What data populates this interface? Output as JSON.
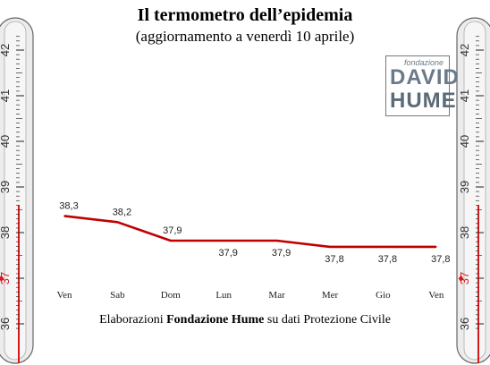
{
  "title": "Il termometro dell’epidemia",
  "subtitle": "(aggiornamento a venerdì 10 aprile)",
  "credit": {
    "prefix": "Elaborazioni ",
    "bold": "Fondazione Hume",
    "suffix": " su dati Protezione Civile"
  },
  "logo": {
    "small": "fondazione",
    "line1": "DAVID",
    "line2": "HUME"
  },
  "thermometer": {
    "scale_labels": [
      "36",
      "37",
      "38",
      "39",
      "40",
      "41",
      "42"
    ],
    "red_label": "37",
    "red_marker": "♦",
    "color_red": "#d7191c",
    "color_tube": "#ececec"
  },
  "chart_data": {
    "type": "line",
    "categories": [
      "Ven",
      "Sab",
      "Dom",
      "Lun",
      "Mar",
      "Mer",
      "Gio",
      "Ven"
    ],
    "series": [
      {
        "values": [
          38.3,
          38.2,
          37.9,
          37.9,
          37.9,
          37.8,
          37.8,
          37.8
        ]
      }
    ],
    "data_labels": [
      "38,3",
      "38,2",
      "37,9",
      "37,9",
      "37,9",
      "37,8",
      "37,8",
      "37,8"
    ],
    "ylim": [
      36,
      42.5
    ],
    "line_color": "#c00000",
    "grid": false,
    "legend": "none"
  }
}
